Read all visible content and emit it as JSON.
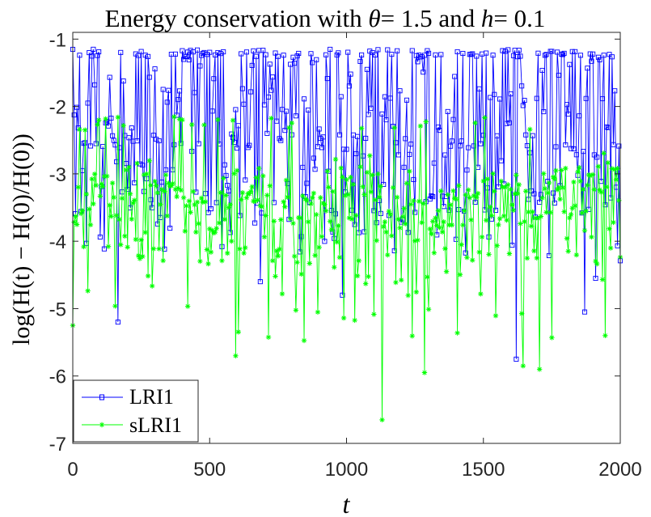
{
  "chart_data": {
    "type": "line",
    "title": "Energy conservation with θ = 1.5 and h = 0.1",
    "title_parts": {
      "prefix": "Energy conservation with ",
      "theta_symbol": "θ",
      "theta_value": "= 1.5",
      "and_word": " and ",
      "h_symbol": "h",
      "h_value": "= 0.1"
    },
    "xlabel": "t",
    "ylabel": "log(H(t) − H(0)/H(0))",
    "xlim": [
      0,
      2000
    ],
    "ylim": [
      -7,
      -0.9
    ],
    "xticks": [
      0,
      500,
      1000,
      1500,
      2000
    ],
    "yticks": [
      -7,
      -6,
      -5,
      -4,
      -3,
      -2,
      -1
    ],
    "xtick_labels": [
      "0",
      "500",
      "1000",
      "1500",
      "2000"
    ],
    "ytick_labels": [
      "-7",
      "-6",
      "-5",
      "-4",
      "-3",
      "-2",
      "-1"
    ],
    "grid": false,
    "legend": {
      "position": "bottom-left",
      "entries": [
        {
          "label": "LRI1",
          "marker": "square",
          "color": "#0000ff"
        },
        {
          "label": "sLRI1",
          "marker": "star",
          "color": "#00ff00"
        }
      ]
    },
    "series": [
      {
        "name": "LRI1",
        "color": "#0000ff",
        "marker": "square",
        "sampling": "t = 0, 5, 10, …, 2000 (401 samples)",
        "upper_envelope": -1.15,
        "typical_range": [
          -4.0,
          -1.15
        ],
        "notable_dips": [
          {
            "t": 165,
            "value": -5.2
          },
          {
            "t": 685,
            "value": -4.6
          },
          {
            "t": 985,
            "value": -4.8
          },
          {
            "t": 1620,
            "value": -5.75
          },
          {
            "t": 1870,
            "value": -5.05
          },
          {
            "t": 1910,
            "value": -4.55
          }
        ]
      },
      {
        "name": "sLRI1",
        "color": "#00ff00",
        "marker": "star",
        "sampling": "t = 0, 5, 10, …, 2000 (401 samples)",
        "upper_envelope": -2.15,
        "baseline_mean": -3.3,
        "typical_range": [
          -4.2,
          -2.15
        ],
        "notable_dips": [
          {
            "t": 0,
            "value": -5.25
          },
          {
            "t": 595,
            "value": -5.7
          },
          {
            "t": 1130,
            "value": -6.65
          },
          {
            "t": 1285,
            "value": -5.95
          },
          {
            "t": 1645,
            "value": -5.85
          },
          {
            "t": 1705,
            "value": -5.9
          },
          {
            "t": 1945,
            "value": -5.4
          }
        ]
      }
    ]
  }
}
